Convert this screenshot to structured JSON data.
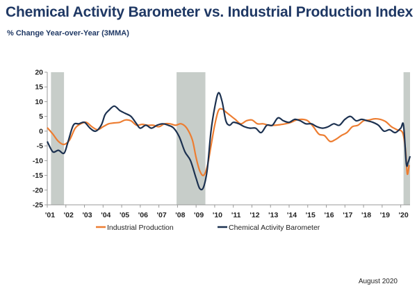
{
  "header": {
    "title": "Chemical Activity Barometer vs. Industrial Production Index",
    "subtitle": "% Change Year-over-Year (3MMA)"
  },
  "footer": {
    "date": "August 2020"
  },
  "colors": {
    "industrial_production": "#ed7d31",
    "cab": "#1c3150",
    "recession": "#c7cdc9",
    "axis": "#999999"
  },
  "chart_data": {
    "type": "line",
    "title": "Chemical Activity Barometer vs. Industrial Production Index",
    "subtitle": "% Change Year-over-Year (3MMA)",
    "xlabel": "",
    "ylabel": "",
    "ylim": [
      -25,
      20
    ],
    "xlim": [
      2001.0,
      2020.5
    ],
    "yticks": [
      20,
      15,
      10,
      5,
      0,
      -5,
      -10,
      -15,
      -20,
      -25
    ],
    "xticks": [
      "'01",
      "'02",
      "'03",
      "'04",
      "'05",
      "'06",
      "'07",
      "'08",
      "'09",
      "'10",
      "'11",
      "'12",
      "'13",
      "'14",
      "'15",
      "'16",
      "'17",
      "'18",
      "'19",
      "'20"
    ],
    "grid": false,
    "legend": "bottom",
    "recessions": [
      [
        2001.2,
        2001.9
      ],
      [
        2007.95,
        2009.5
      ],
      [
        2020.15,
        2020.5
      ]
    ],
    "series": [
      {
        "name": "Industrial Production",
        "color": "#ed7d31",
        "x": [
          2001.0,
          2001.3,
          2001.6,
          2001.9,
          2002.2,
          2002.5,
          2002.8,
          2003.1,
          2003.4,
          2003.7,
          2004.0,
          2004.3,
          2004.6,
          2004.9,
          2005.2,
          2005.5,
          2005.8,
          2006.1,
          2006.4,
          2006.7,
          2007.0,
          2007.3,
          2007.6,
          2007.9,
          2008.2,
          2008.5,
          2008.8,
          2009.0,
          2009.2,
          2009.4,
          2009.6,
          2009.8,
          2010.0,
          2010.2,
          2010.4,
          2010.6,
          2010.8,
          2011.1,
          2011.4,
          2011.7,
          2012.0,
          2012.3,
          2012.6,
          2012.9,
          2013.2,
          2013.5,
          2013.8,
          2014.1,
          2014.4,
          2014.7,
          2015.0,
          2015.3,
          2015.6,
          2015.9,
          2016.2,
          2016.5,
          2016.8,
          2017.1,
          2017.4,
          2017.7,
          2018.0,
          2018.3,
          2018.6,
          2018.9,
          2019.2,
          2019.5,
          2019.8,
          2020.1,
          2020.25,
          2020.35,
          2020.45
        ],
        "y": [
          1.2,
          -1.0,
          -3.5,
          -4.5,
          -3.0,
          1.0,
          2.5,
          3.0,
          1.5,
          0.5,
          1.5,
          2.5,
          2.8,
          3.0,
          3.8,
          3.5,
          2.0,
          2.3,
          2.0,
          2.0,
          1.5,
          2.5,
          2.5,
          2.0,
          2.5,
          1.0,
          -3.0,
          -9.0,
          -13.5,
          -15.0,
          -12.0,
          -5.0,
          2.0,
          7.0,
          7.5,
          6.5,
          5.5,
          4.0,
          2.5,
          3.5,
          3.8,
          2.5,
          2.5,
          2.0,
          2.0,
          2.2,
          2.5,
          3.0,
          3.8,
          4.0,
          3.5,
          1.5,
          -1.0,
          -1.5,
          -3.5,
          -2.8,
          -1.5,
          -0.5,
          1.5,
          2.0,
          3.5,
          3.8,
          4.2,
          4.0,
          3.2,
          1.5,
          0.5,
          -0.5,
          -6.0,
          -14.5,
          -11.5
        ]
      },
      {
        "name": "Chemical Activity Barometer",
        "color": "#1c3150",
        "x": [
          2001.0,
          2001.3,
          2001.6,
          2001.9,
          2002.1,
          2002.4,
          2002.7,
          2003.0,
          2003.3,
          2003.6,
          2003.9,
          2004.1,
          2004.3,
          2004.6,
          2004.9,
          2005.2,
          2005.5,
          2005.8,
          2006.0,
          2006.3,
          2006.6,
          2006.9,
          2007.2,
          2007.5,
          2007.8,
          2008.1,
          2008.4,
          2008.7,
          2009.0,
          2009.2,
          2009.4,
          2009.6,
          2009.8,
          2010.0,
          2010.2,
          2010.4,
          2010.6,
          2010.8,
          2011.0,
          2011.3,
          2011.6,
          2011.9,
          2012.2,
          2012.5,
          2012.8,
          2013.1,
          2013.4,
          2013.7,
          2014.0,
          2014.3,
          2014.6,
          2014.9,
          2015.2,
          2015.5,
          2015.8,
          2016.1,
          2016.4,
          2016.7,
          2017.0,
          2017.3,
          2017.6,
          2017.9,
          2018.2,
          2018.5,
          2018.8,
          2019.1,
          2019.4,
          2019.7,
          2020.0,
          2020.15,
          2020.3,
          2020.4,
          2020.5
        ],
        "y": [
          -3.5,
          -7.0,
          -6.5,
          -7.5,
          -4.0,
          2.0,
          2.5,
          3.0,
          1.0,
          0.0,
          2.0,
          5.5,
          7.0,
          8.5,
          7.0,
          6.0,
          5.0,
          2.5,
          1.0,
          2.0,
          1.0,
          2.0,
          2.5,
          2.0,
          1.0,
          -2.0,
          -7.0,
          -10.0,
          -16.0,
          -19.5,
          -19.0,
          -13.0,
          0.0,
          8.0,
          13.0,
          10.0,
          3.5,
          2.0,
          3.0,
          2.5,
          1.5,
          1.0,
          1.0,
          -0.5,
          2.0,
          2.0,
          4.5,
          3.5,
          3.0,
          4.0,
          3.5,
          2.5,
          2.5,
          1.5,
          1.0,
          1.5,
          2.5,
          2.0,
          4.0,
          5.0,
          3.5,
          4.0,
          3.5,
          3.0,
          2.0,
          0.0,
          0.5,
          -0.5,
          1.0,
          2.0,
          -11.0,
          -10.5,
          -8.5
        ]
      }
    ]
  }
}
